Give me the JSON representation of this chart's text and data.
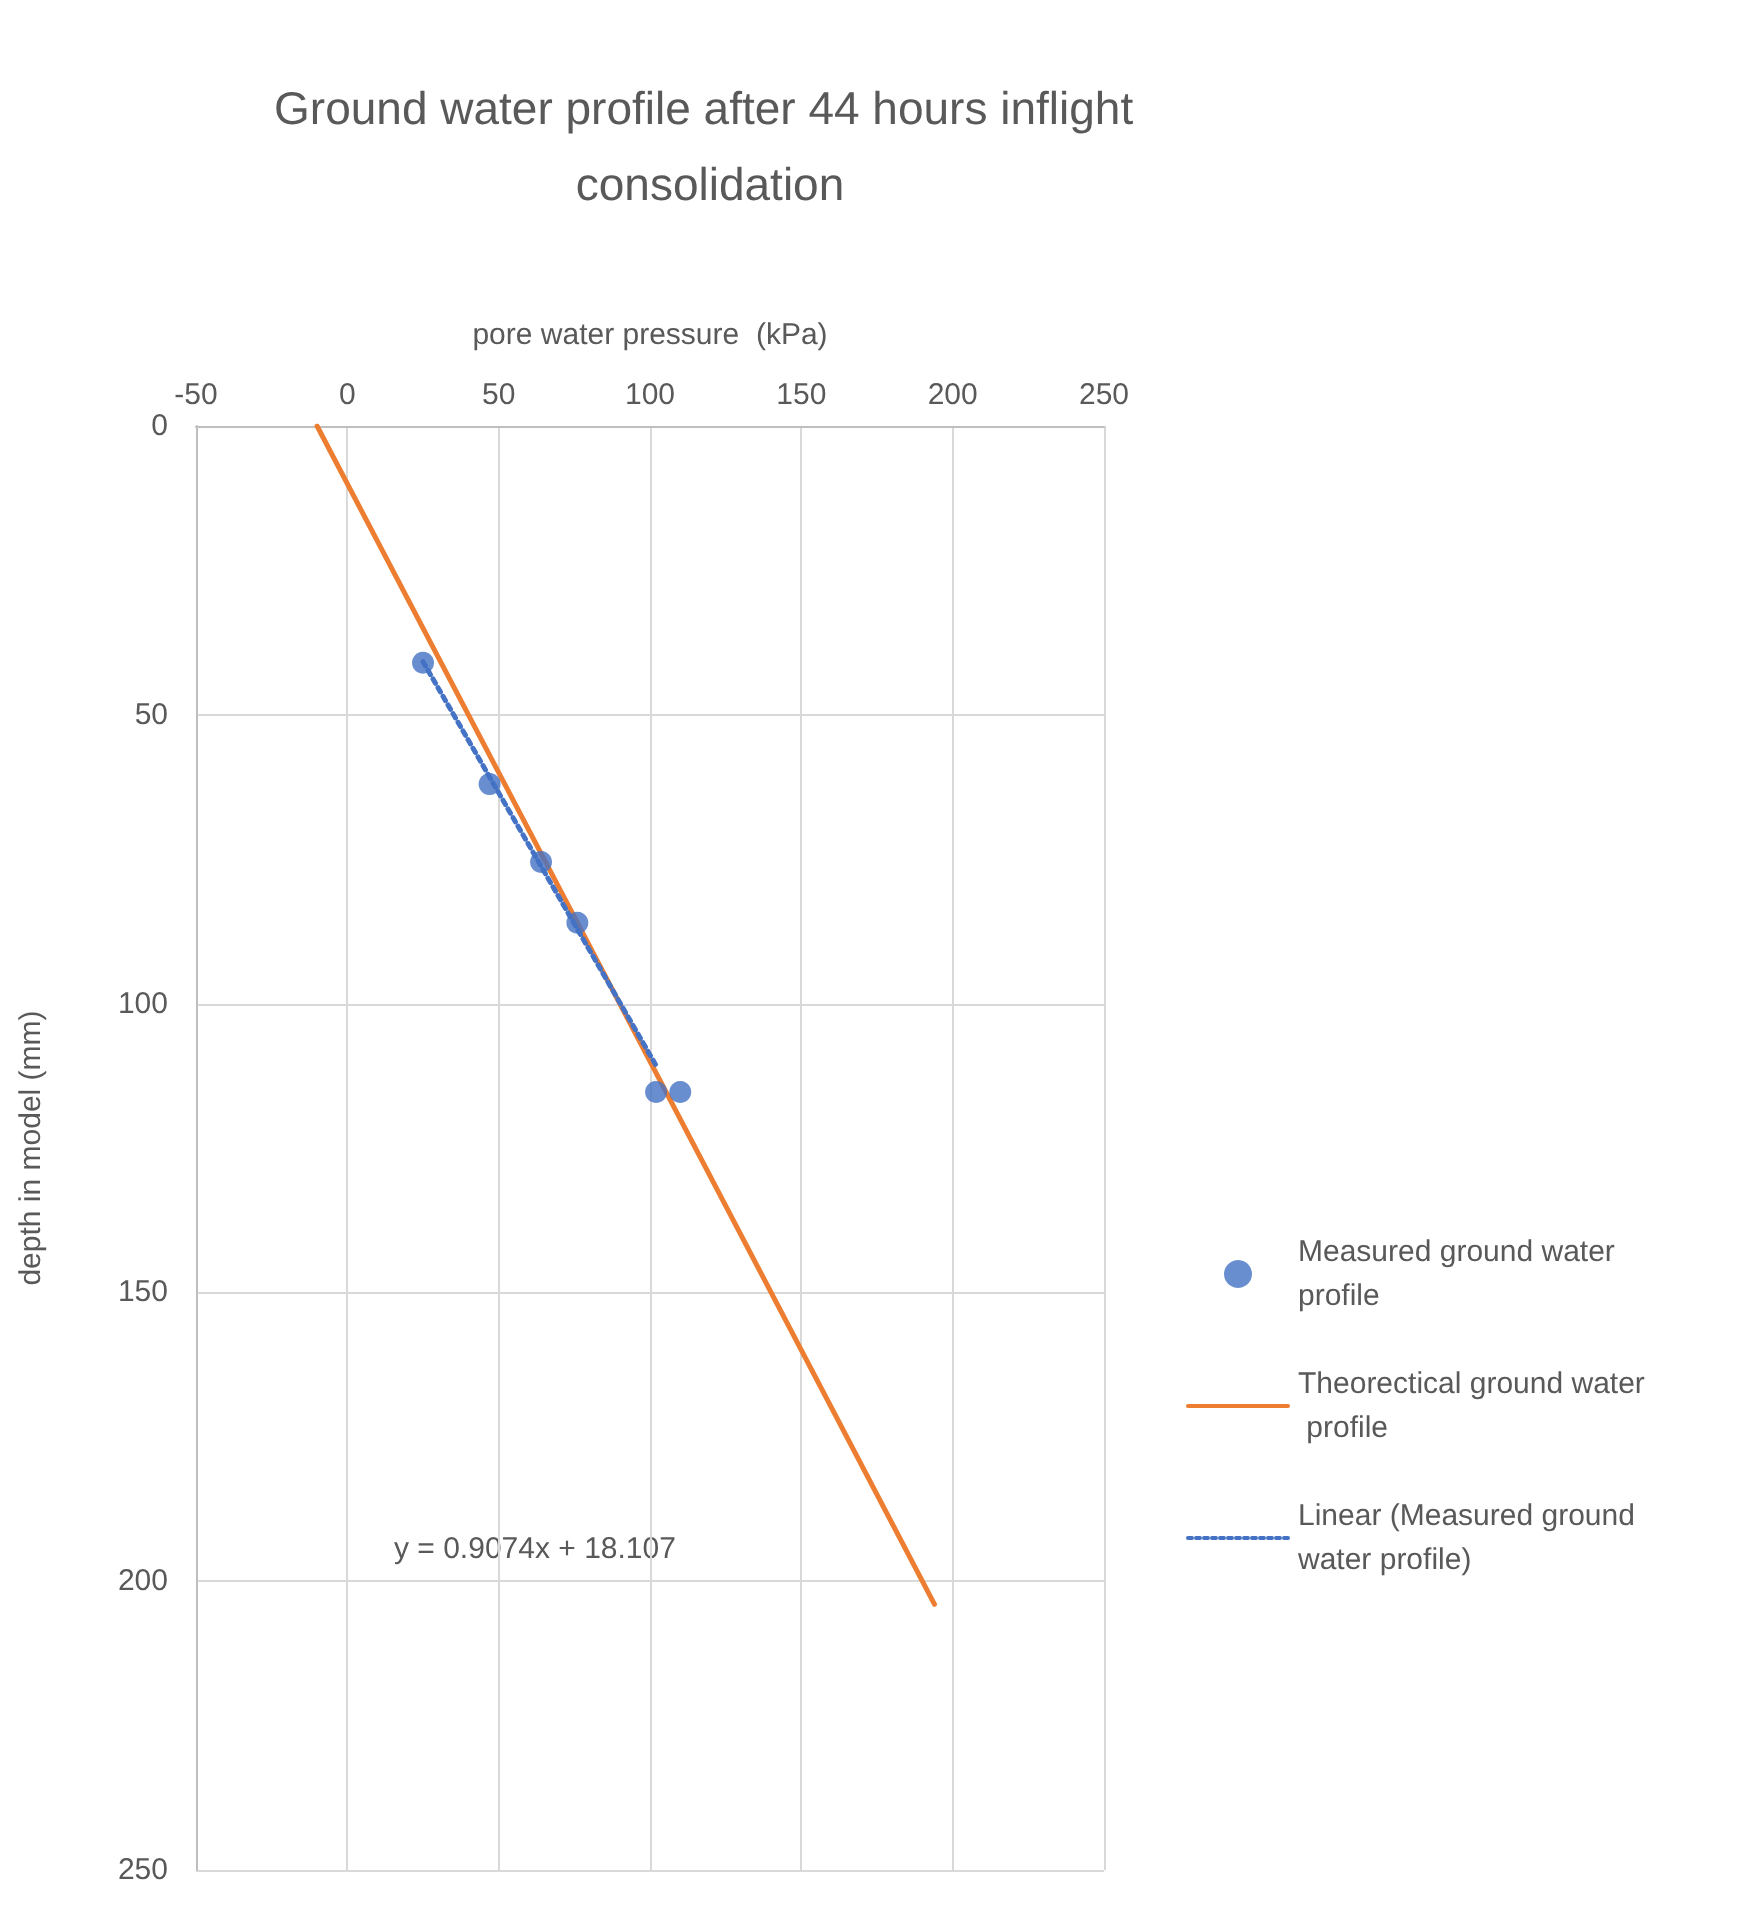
{
  "chart_data": {
    "type": "scatter",
    "title": "Ground water profile after 44 hours inflight consolidation",
    "xlabel": "pore water pressure  (kPa)",
    "ylabel": "depth in model (mm)",
    "xlim": [
      -50,
      250
    ],
    "xticks": [
      -50,
      0,
      50,
      100,
      150,
      200,
      250
    ],
    "ylim": [
      250,
      0
    ],
    "yticks": [
      0,
      50,
      100,
      150,
      200,
      250
    ],
    "series": [
      {
        "name": "Measured ground water profile",
        "marker": "circle",
        "color": "#4472c4",
        "x": [
          25,
          47,
          64,
          76,
          102,
          110
        ],
        "values": [
          41,
          62,
          75.5,
          86,
          115.3,
          115.3
        ]
      },
      {
        "name": "Theorectical ground water profile",
        "type": "line",
        "color": "#ed7d31",
        "marker": "none",
        "line_style": "solid",
        "x": [
          -10,
          194
        ],
        "values": [
          0,
          204
        ]
      },
      {
        "name": "Linear (Measured ground water profile)",
        "type": "line",
        "color": "#4472c4",
        "marker": "none",
        "line_style": "dotted",
        "x": [
          25,
          102
        ],
        "values": [
          40.8,
          110.7
        ]
      }
    ],
    "annotations": [
      "y = 0.9074x + 18.107"
    ],
    "grid": true,
    "legend": "right"
  }
}
